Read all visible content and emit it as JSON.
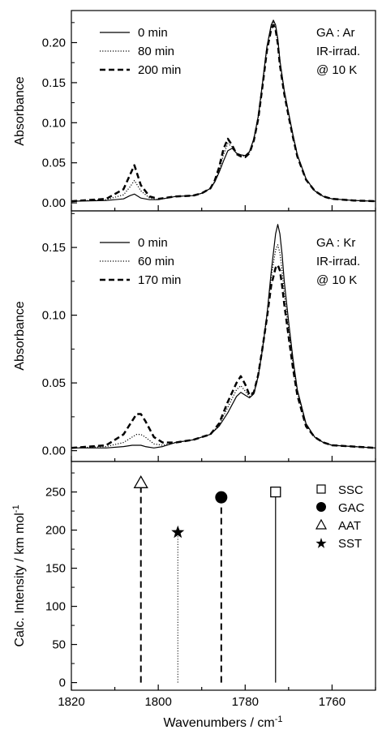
{
  "chart_data": [
    {
      "type": "line",
      "ylabel": "Absorbance",
      "xlim": [
        1820,
        1750
      ],
      "ylim": [
        -0.01,
        0.24
      ],
      "yticks": [
        "0.00",
        "0.05",
        "0.10",
        "0.15",
        "0.20"
      ],
      "annotation": [
        "GA : Ar",
        "IR-irrad.",
        "@ 10 K"
      ],
      "legend_position": "top-left",
      "series": [
        {
          "name": "0 min",
          "style": "solid",
          "x": [
            1820,
            1812,
            1808,
            1806.5,
            1805.5,
            1804,
            1802,
            1800,
            1796,
            1792,
            1790,
            1788,
            1787,
            1786,
            1785,
            1784,
            1783,
            1782,
            1781,
            1780,
            1779,
            1778,
            1777,
            1776,
            1775,
            1774,
            1773.5,
            1773,
            1772.5,
            1772,
            1771,
            1770,
            1769,
            1768,
            1766,
            1764,
            1762,
            1760,
            1755,
            1750
          ],
          "y": [
            0.002,
            0.003,
            0.005,
            0.009,
            0.011,
            0.006,
            0.004,
            0.004,
            0.008,
            0.009,
            0.012,
            0.018,
            0.026,
            0.038,
            0.052,
            0.065,
            0.068,
            0.062,
            0.06,
            0.059,
            0.064,
            0.08,
            0.108,
            0.15,
            0.195,
            0.222,
            0.228,
            0.222,
            0.205,
            0.178,
            0.14,
            0.112,
            0.085,
            0.06,
            0.03,
            0.015,
            0.008,
            0.005,
            0.003,
            0.002
          ]
        },
        {
          "name": "80 min",
          "style": "dotted",
          "x": [
            1820,
            1812,
            1808,
            1806.5,
            1805.5,
            1804,
            1802,
            1800,
            1796,
            1792,
            1790,
            1788,
            1787,
            1786,
            1785,
            1784,
            1783,
            1782,
            1781,
            1780,
            1779,
            1778,
            1777,
            1776,
            1775,
            1774,
            1773.5,
            1773,
            1772.5,
            1772,
            1771,
            1770,
            1769,
            1768,
            1766,
            1764,
            1762,
            1760,
            1755,
            1750
          ],
          "y": [
            0.002,
            0.004,
            0.01,
            0.02,
            0.028,
            0.015,
            0.006,
            0.004,
            0.008,
            0.009,
            0.012,
            0.018,
            0.027,
            0.04,
            0.06,
            0.074,
            0.07,
            0.062,
            0.059,
            0.058,
            0.063,
            0.079,
            0.106,
            0.148,
            0.193,
            0.22,
            0.225,
            0.219,
            0.202,
            0.175,
            0.138,
            0.11,
            0.083,
            0.059,
            0.03,
            0.015,
            0.008,
            0.005,
            0.003,
            0.002
          ]
        },
        {
          "name": "200 min",
          "style": "dashed",
          "x": [
            1820,
            1812,
            1808,
            1806.5,
            1805.5,
            1804,
            1802,
            1800,
            1796,
            1792,
            1790,
            1788,
            1787,
            1786,
            1785,
            1784,
            1783,
            1782,
            1781,
            1780,
            1779,
            1778,
            1777,
            1776,
            1775,
            1774,
            1773.5,
            1773,
            1772.5,
            1772,
            1771,
            1770,
            1769,
            1768,
            1766,
            1764,
            1762,
            1760,
            1755,
            1750
          ],
          "y": [
            0.002,
            0.005,
            0.017,
            0.035,
            0.047,
            0.022,
            0.008,
            0.005,
            0.008,
            0.009,
            0.012,
            0.018,
            0.028,
            0.044,
            0.067,
            0.08,
            0.072,
            0.061,
            0.058,
            0.057,
            0.062,
            0.078,
            0.105,
            0.146,
            0.19,
            0.217,
            0.222,
            0.216,
            0.199,
            0.172,
            0.136,
            0.108,
            0.082,
            0.058,
            0.029,
            0.015,
            0.008,
            0.005,
            0.003,
            0.002
          ]
        }
      ]
    },
    {
      "type": "line",
      "ylabel": "Absorbance",
      "xlim": [
        1820,
        1750
      ],
      "ylim": [
        -0.008,
        0.177
      ],
      "yticks": [
        "0.00",
        "0.05",
        "0.10",
        "0.15"
      ],
      "annotation": [
        "GA : Kr",
        "IR-irrad.",
        "@ 10 K"
      ],
      "legend_position": "top-left",
      "series": [
        {
          "name": "0 min",
          "style": "solid",
          "x": [
            1820,
            1812,
            1808,
            1806,
            1805,
            1804,
            1803,
            1801,
            1799,
            1796,
            1792,
            1788,
            1786,
            1784,
            1782,
            1781,
            1780,
            1779,
            1778,
            1777,
            1776,
            1775,
            1774,
            1773,
            1772.5,
            1772,
            1771.5,
            1771,
            1770,
            1769,
            1768,
            1766,
            1764,
            1762,
            1760,
            1755,
            1750
          ],
          "y": [
            0.002,
            0.002,
            0.003,
            0.004,
            0.004,
            0.004,
            0.003,
            0.002,
            0.003,
            0.006,
            0.008,
            0.012,
            0.018,
            0.028,
            0.04,
            0.043,
            0.041,
            0.039,
            0.042,
            0.055,
            0.075,
            0.1,
            0.132,
            0.16,
            0.167,
            0.16,
            0.145,
            0.125,
            0.095,
            0.068,
            0.045,
            0.02,
            0.01,
            0.006,
            0.004,
            0.003,
            0.002
          ]
        },
        {
          "name": "60 min",
          "style": "dotted",
          "x": [
            1820,
            1812,
            1808,
            1806,
            1805,
            1804,
            1803,
            1801,
            1799,
            1796,
            1792,
            1788,
            1786,
            1784,
            1782,
            1781,
            1780,
            1779,
            1778,
            1777,
            1776,
            1775,
            1774,
            1773,
            1772.5,
            1772,
            1771.5,
            1771,
            1770,
            1769,
            1768,
            1766,
            1764,
            1762,
            1760,
            1755,
            1750
          ],
          "y": [
            0.002,
            0.003,
            0.006,
            0.01,
            0.012,
            0.012,
            0.01,
            0.005,
            0.004,
            0.006,
            0.008,
            0.012,
            0.019,
            0.032,
            0.045,
            0.048,
            0.044,
            0.04,
            0.043,
            0.056,
            0.076,
            0.1,
            0.128,
            0.148,
            0.152,
            0.146,
            0.133,
            0.116,
            0.089,
            0.064,
            0.043,
            0.019,
            0.01,
            0.006,
            0.004,
            0.003,
            0.002
          ]
        },
        {
          "name": "170 min",
          "style": "dashed",
          "x": [
            1820,
            1812,
            1808,
            1806,
            1805,
            1804,
            1803,
            1801,
            1799,
            1796,
            1792,
            1788,
            1786,
            1784,
            1782,
            1781,
            1780,
            1779,
            1778,
            1777,
            1776,
            1775,
            1774,
            1773,
            1772.5,
            1772,
            1771.5,
            1771,
            1770,
            1769,
            1768,
            1766,
            1764,
            1762,
            1760,
            1755,
            1750
          ],
          "y": [
            0.002,
            0.004,
            0.012,
            0.022,
            0.027,
            0.027,
            0.022,
            0.01,
            0.006,
            0.006,
            0.008,
            0.012,
            0.02,
            0.036,
            0.05,
            0.055,
            0.049,
            0.041,
            0.043,
            0.056,
            0.076,
            0.098,
            0.122,
            0.135,
            0.137,
            0.133,
            0.122,
            0.108,
            0.084,
            0.061,
            0.041,
            0.018,
            0.01,
            0.006,
            0.004,
            0.003,
            0.002
          ]
        }
      ]
    },
    {
      "type": "stick",
      "xlabel": "Wavenumbers /  cm",
      "xlabel_sup": "-1",
      "ylabel": "Calc. Intensity /  km mol",
      "ylabel_sup": "-1",
      "xlim": [
        1820,
        1750
      ],
      "ylim": [
        -10,
        290
      ],
      "xticks": [
        "1820",
        "1800",
        "1780",
        "1760"
      ],
      "yticks": [
        "0",
        "50",
        "100",
        "150",
        "200",
        "250"
      ],
      "legend_position": "top-right",
      "series": [
        {
          "name": "SSC",
          "x": 1773,
          "y": 250,
          "marker": "open-square",
          "line": "solid"
        },
        {
          "name": "GAC",
          "x": 1785.5,
          "y": 243,
          "marker": "filled-circle",
          "line": "dashed"
        },
        {
          "name": "AAT",
          "x": 1804,
          "y": 262,
          "marker": "open-triangle",
          "line": "dashed"
        },
        {
          "name": "SST",
          "x": 1795.5,
          "y": 197,
          "marker": "star",
          "line": "dotted"
        }
      ]
    }
  ]
}
